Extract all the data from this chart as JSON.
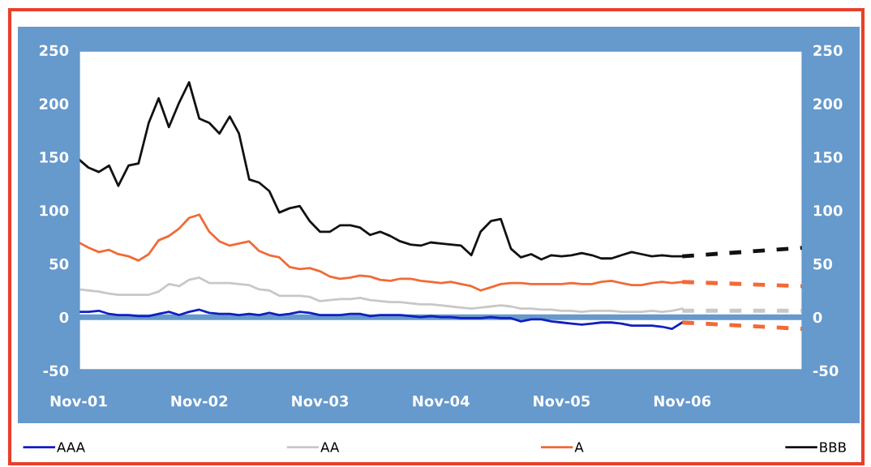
{
  "chart_data": {
    "type": "line",
    "x": [
      "2001-11",
      "2001-12",
      "2002-01",
      "2002-02",
      "2002-03",
      "2002-04",
      "2002-05",
      "2002-06",
      "2002-07",
      "2002-08",
      "2002-09",
      "2002-10",
      "2002-11",
      "2002-12",
      "2003-01",
      "2003-02",
      "2003-03",
      "2003-04",
      "2003-05",
      "2003-06",
      "2003-07",
      "2003-08",
      "2003-09",
      "2003-10",
      "2003-11",
      "2003-12",
      "2004-01",
      "2004-02",
      "2004-03",
      "2004-04",
      "2004-05",
      "2004-06",
      "2004-07",
      "2004-08",
      "2004-09",
      "2004-10",
      "2004-11",
      "2004-12",
      "2005-01",
      "2005-02",
      "2005-03",
      "2005-04",
      "2005-05",
      "2005-06",
      "2005-07",
      "2005-08",
      "2005-09",
      "2005-10",
      "2005-11",
      "2005-12",
      "2006-01",
      "2006-02",
      "2006-03",
      "2006-04",
      "2006-05",
      "2006-06",
      "2006-07",
      "2006-08",
      "2006-09",
      "2006-10",
      "2006-11"
    ],
    "series": [
      {
        "name": "AAA",
        "color": "#1020c0",
        "values": [
          5,
          5,
          6,
          3,
          2,
          2,
          1,
          1,
          3,
          5,
          2,
          5,
          7,
          4,
          3,
          3,
          2,
          3,
          2,
          4,
          2,
          3,
          5,
          4,
          2,
          2,
          2,
          3,
          3,
          1,
          2,
          2,
          2,
          1,
          0,
          1,
          0,
          0,
          -1,
          -1,
          -1,
          0,
          -1,
          -1,
          -4,
          -2,
          -2,
          -4,
          -5,
          -6,
          -7,
          -6,
          -5,
          -5,
          -6,
          -8,
          -8,
          -8,
          -9,
          -11,
          -5
        ]
      },
      {
        "name": "AA",
        "color": "#c8c8c8",
        "values": [
          26,
          25,
          24,
          22,
          21,
          21,
          21,
          21,
          24,
          31,
          29,
          35,
          37,
          32,
          32,
          32,
          31,
          30,
          26,
          25,
          20,
          20,
          20,
          19,
          15,
          16,
          17,
          17,
          18,
          16,
          15,
          14,
          14,
          13,
          12,
          12,
          11,
          10,
          9,
          8,
          9,
          10,
          11,
          10,
          8,
          8,
          7,
          7,
          6,
          6,
          5,
          6,
          6,
          6,
          5,
          5,
          5,
          6,
          5,
          6,
          8
        ]
      },
      {
        "name": "A",
        "color": "#f26a35",
        "values": [
          70,
          65,
          61,
          63,
          59,
          57,
          53,
          59,
          72,
          76,
          83,
          93,
          96,
          80,
          71,
          67,
          69,
          71,
          62,
          58,
          56,
          47,
          45,
          46,
          43,
          38,
          36,
          37,
          39,
          38,
          35,
          34,
          36,
          36,
          34,
          33,
          32,
          33,
          31,
          29,
          25,
          28,
          31,
          32,
          32,
          31,
          31,
          31,
          31,
          32,
          31,
          31,
          33,
          34,
          32,
          30,
          30,
          32,
          33,
          32,
          33
        ]
      },
      {
        "name": "BBB",
        "color": "#111111",
        "values": [
          148,
          140,
          136,
          142,
          123,
          142,
          144,
          182,
          205,
          178,
          201,
          220,
          186,
          182,
          172,
          188,
          172,
          129,
          126,
          118,
          98,
          102,
          104,
          90,
          80,
          80,
          86,
          86,
          84,
          77,
          80,
          76,
          71,
          68,
          67,
          70,
          69,
          68,
          67,
          58,
          80,
          90,
          92,
          64,
          56,
          59,
          54,
          58,
          57,
          58,
          60,
          58,
          55,
          55,
          58,
          61,
          59,
          57,
          58,
          57,
          57
        ]
      },
      {
        "color": "#111111",
        "line_style": "dashed",
        "x": [
          "2006-11",
          "2007-11"
        ],
        "values": [
          57,
          65
        ]
      },
      {
        "color": "#f26a35",
        "line_style": "dashed",
        "x": [
          "2006-11",
          "2007-11"
        ],
        "values": [
          33,
          29
        ]
      },
      {
        "color": "#c8c8c8",
        "line_style": "dashed",
        "x": [
          "2006-11",
          "2007-11"
        ],
        "values": [
          6,
          6
        ]
      },
      {
        "color": "#f26a35",
        "line_style": "dashed",
        "x": [
          "2006-11",
          "2007-11"
        ],
        "values": [
          -5,
          -11
        ]
      }
    ],
    "xlim": [
      "2001-11",
      "2007-11"
    ],
    "xticks": [
      {
        "value": "2001-11",
        "label": "Nov-01"
      },
      {
        "value": "2002-11",
        "label": "Nov-02"
      },
      {
        "value": "2003-11",
        "label": "Nov-03"
      },
      {
        "value": "2004-11",
        "label": "Nov-04"
      },
      {
        "value": "2005-11",
        "label": "Nov-05"
      },
      {
        "value": "2006-11",
        "label": "Nov-06"
      }
    ],
    "ylim": [
      -50,
      250
    ],
    "yticks": [
      -50,
      0,
      50,
      100,
      150,
      200,
      250
    ],
    "y2lim": [
      -50,
      250
    ],
    "y2ticks": [
      -50,
      0,
      50,
      100,
      150,
      200,
      250
    ],
    "ref_lines": [
      {
        "axis": "y",
        "value": 0,
        "color": "#6699cc"
      }
    ],
    "grid": false,
    "legend": "bottom",
    "line_style": "solid",
    "marker": "none"
  }
}
